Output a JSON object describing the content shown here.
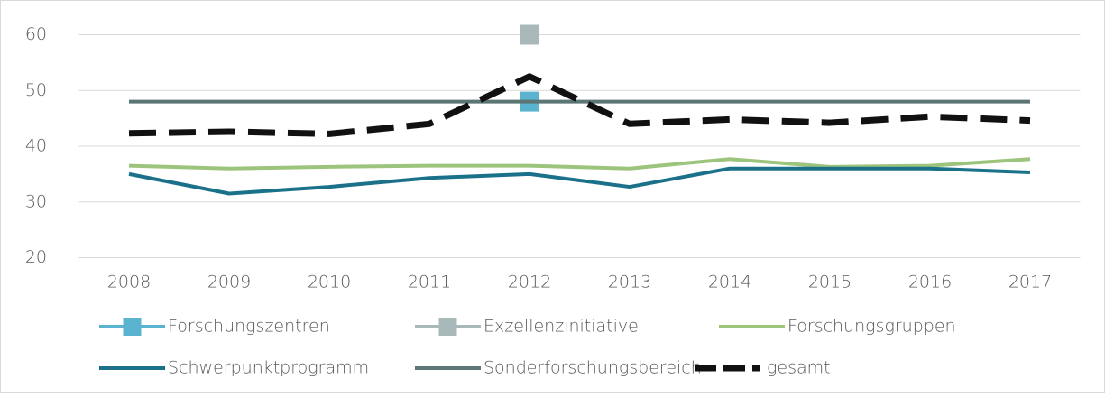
{
  "chart_data": {
    "type": "line",
    "categories": [
      "2008",
      "2009",
      "2010",
      "2011",
      "2012",
      "2013",
      "2014",
      "2015",
      "2016",
      "2017"
    ],
    "series": [
      {
        "name": "Forschungszentren",
        "color": "#5ab4cf",
        "marker": "square",
        "values": [
          null,
          null,
          null,
          null,
          48,
          null,
          null,
          null,
          null,
          null
        ]
      },
      {
        "name": "Exzellenzinitiative",
        "color": "#a9b9b9",
        "marker": "square",
        "values": [
          null,
          null,
          null,
          null,
          60,
          null,
          null,
          null,
          null,
          null
        ]
      },
      {
        "name": "Forschungsgruppen",
        "color": "#9cc47c",
        "values": [
          36.5,
          36,
          36.3,
          36.5,
          36.5,
          36,
          37.7,
          36.3,
          36.5,
          37.7
        ]
      },
      {
        "name": "Schwerpunktprogramm",
        "color": "#1b7189",
        "values": [
          35,
          31.5,
          32.7,
          34.3,
          35,
          32.7,
          36,
          36,
          36,
          35.3
        ]
      },
      {
        "name": "Sonderforschungsbereich",
        "color": "#5c7575",
        "values": [
          48,
          48,
          48,
          48,
          48,
          48,
          48,
          48,
          48,
          48
        ]
      },
      {
        "name": "gesamt",
        "color": "#111111",
        "dash": true,
        "values": [
          42.3,
          42.6,
          42.2,
          44,
          52.5,
          44,
          44.8,
          44.2,
          45.3,
          44.6
        ]
      }
    ],
    "ylim": [
      20,
      60
    ],
    "yticks": [
      20,
      30,
      40,
      50,
      60
    ],
    "grid": true,
    "legend": "bottom"
  }
}
